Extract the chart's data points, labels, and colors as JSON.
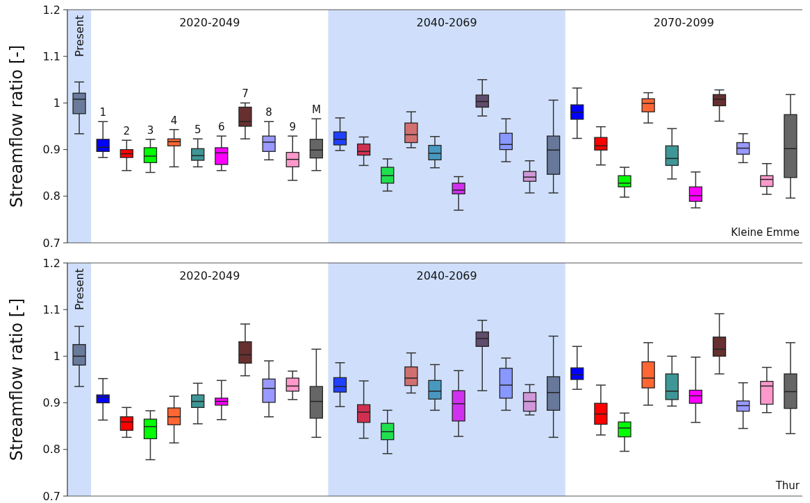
{
  "chart_data": [
    {
      "type": "box",
      "ylabel": "Streamflow ratio [-]",
      "ylim": [
        0.7,
        1.2
      ],
      "yticks": [
        0.7,
        0.8,
        0.9,
        1,
        1.1,
        1.2
      ],
      "categories": [
        "Present",
        "1",
        "2",
        "3",
        "4",
        "5",
        "6",
        "7",
        "8",
        "9",
        "M",
        null,
        null,
        null,
        null,
        null,
        null,
        null,
        null,
        null,
        null,
        null,
        null,
        null,
        null,
        null,
        null,
        null,
        null,
        null,
        null
      ],
      "colors": [
        "#6a7a9a",
        "#0000ff",
        "#ff0000",
        "#00ff00",
        "#ff6633",
        "#3f9696",
        "#ff00ff",
        "#663030",
        "#9999ff",
        "#ff99cc",
        "#666666",
        "#2040ff",
        "#d03050",
        "#20e050",
        "#d07070",
        "#4898c0",
        "#d030f0",
        "#604c6c",
        "#8898ff",
        "#d098d8",
        "#68789a",
        "#0000ff",
        "#ff0000",
        "#00ff00",
        "#ff6633",
        "#3f9696",
        "#ff00ff",
        "#663030",
        "#9999ff",
        "#ff99cc",
        "#666666"
      ],
      "boxes": [
        {
          "low": 0.934,
          "q1": 0.977,
          "median": 1.008,
          "q3": 1.021,
          "high": 1.045
        },
        {
          "low": 0.883,
          "q1": 0.896,
          "median": 0.905,
          "q3": 0.922,
          "high": 0.96
        },
        {
          "low": 0.855,
          "q1": 0.883,
          "median": 0.891,
          "q3": 0.9,
          "high": 0.92
        },
        {
          "low": 0.851,
          "q1": 0.872,
          "median": 0.886,
          "q3": 0.904,
          "high": 0.922
        },
        {
          "low": 0.863,
          "q1": 0.908,
          "median": 0.917,
          "q3": 0.923,
          "high": 0.943
        },
        {
          "low": 0.863,
          "q1": 0.877,
          "median": 0.887,
          "q3": 0.902,
          "high": 0.923
        },
        {
          "low": 0.855,
          "q1": 0.868,
          "median": 0.893,
          "q3": 0.904,
          "high": 0.929
        },
        {
          "low": 0.923,
          "q1": 0.95,
          "median": 0.96,
          "q3": 0.991,
          "high": 1.0
        },
        {
          "low": 0.878,
          "q1": 0.896,
          "median": 0.916,
          "q3": 0.929,
          "high": 0.96
        },
        {
          "low": 0.834,
          "q1": 0.863,
          "median": 0.879,
          "q3": 0.894,
          "high": 0.929
        },
        {
          "low": 0.855,
          "q1": 0.882,
          "median": 0.899,
          "q3": 0.922,
          "high": 0.966
        },
        {
          "low": 0.898,
          "q1": 0.91,
          "median": 0.922,
          "q3": 0.938,
          "high": 0.968
        },
        {
          "low": 0.866,
          "q1": 0.888,
          "median": 0.896,
          "q3": 0.912,
          "high": 0.927
        },
        {
          "low": 0.811,
          "q1": 0.828,
          "median": 0.844,
          "q3": 0.862,
          "high": 0.88
        },
        {
          "low": 0.904,
          "q1": 0.915,
          "median": 0.932,
          "q3": 0.957,
          "high": 0.981
        },
        {
          "low": 0.861,
          "q1": 0.878,
          "median": 0.892,
          "q3": 0.909,
          "high": 0.928
        },
        {
          "low": 0.77,
          "q1": 0.805,
          "median": 0.813,
          "q3": 0.828,
          "high": 0.842
        },
        {
          "low": 0.972,
          "q1": 0.991,
          "median": 1.003,
          "q3": 1.017,
          "high": 1.05
        },
        {
          "low": 0.874,
          "q1": 0.9,
          "median": 0.911,
          "q3": 0.935,
          "high": 0.966
        },
        {
          "low": 0.807,
          "q1": 0.832,
          "median": 0.841,
          "q3": 0.853,
          "high": 0.876
        },
        {
          "low": 0.807,
          "q1": 0.847,
          "median": 0.899,
          "q3": 0.929,
          "high": 1.006
        },
        {
          "low": 0.924,
          "q1": 0.965,
          "median": 0.98,
          "q3": 0.996,
          "high": 1.032
        },
        {
          "low": 0.867,
          "q1": 0.899,
          "median": 0.908,
          "q3": 0.926,
          "high": 0.949
        },
        {
          "low": 0.798,
          "q1": 0.82,
          "median": 0.828,
          "q3": 0.844,
          "high": 0.862
        },
        {
          "low": 0.957,
          "q1": 0.981,
          "median": 0.999,
          "q3": 1.009,
          "high": 1.022
        },
        {
          "low": 0.837,
          "q1": 0.866,
          "median": 0.881,
          "q3": 0.908,
          "high": 0.945
        },
        {
          "low": 0.775,
          "q1": 0.789,
          "median": 0.801,
          "q3": 0.82,
          "high": 0.852
        },
        {
          "low": 0.961,
          "q1": 0.994,
          "median": 1.008,
          "q3": 1.018,
          "high": 1.028
        },
        {
          "low": 0.872,
          "q1": 0.89,
          "median": 0.903,
          "q3": 0.915,
          "high": 0.934
        },
        {
          "low": 0.804,
          "q1": 0.821,
          "median": 0.836,
          "q3": 0.844,
          "high": 0.87
        },
        {
          "low": 0.796,
          "q1": 0.84,
          "median": 0.902,
          "q3": 0.975,
          "high": 1.018
        }
      ],
      "bands": [
        {
          "axis": "x",
          "from": "Present",
          "to": "Present",
          "color": "#cfdffb"
        }
      ],
      "annotations": [
        "2020-2049",
        "2040-2069",
        "2070-2099",
        "Kleine Emme"
      ]
    },
    {
      "type": "box",
      "ylabel": "Streamflow ratio [-]",
      "ylim": [
        0.7,
        1.2
      ],
      "yticks": [
        0.7,
        0.8,
        0.9,
        1,
        1.1,
        1.2
      ],
      "categories": [
        "Present",
        null,
        null,
        null,
        null,
        null,
        null,
        null,
        null,
        null,
        null,
        null,
        null,
        null,
        null,
        null,
        null,
        null,
        null,
        null,
        null,
        null,
        null,
        null,
        null,
        null,
        null,
        null,
        null,
        null,
        null
      ],
      "colors": [
        "#6a7a9a",
        "#0000ff",
        "#ff0000",
        "#00ff00",
        "#ff6633",
        "#3f9696",
        "#ff00ff",
        "#663030",
        "#9999ff",
        "#ff99cc",
        "#666666",
        "#2040ff",
        "#d03050",
        "#20e050",
        "#d07070",
        "#4898c0",
        "#d030f0",
        "#604c6c",
        "#8898ff",
        "#d098d8",
        "#68789a",
        "#0000ff",
        "#ff0000",
        "#00ff00",
        "#ff6633",
        "#3f9696",
        "#ff00ff",
        "#663030",
        "#9999ff",
        "#ff99cc",
        "#666666"
      ],
      "boxes": [
        {
          "low": 0.935,
          "q1": 0.981,
          "median": 1.0,
          "q3": 1.025,
          "high": 1.064
        },
        {
          "low": 0.863,
          "q1": 0.9,
          "median": 0.912,
          "q3": 0.917,
          "high": 0.952
        },
        {
          "low": 0.826,
          "q1": 0.841,
          "median": 0.859,
          "q3": 0.87,
          "high": 0.89
        },
        {
          "low": 0.778,
          "q1": 0.823,
          "median": 0.849,
          "q3": 0.865,
          "high": 0.883
        },
        {
          "low": 0.814,
          "q1": 0.853,
          "median": 0.87,
          "q3": 0.889,
          "high": 0.914
        },
        {
          "low": 0.855,
          "q1": 0.89,
          "median": 0.903,
          "q3": 0.917,
          "high": 0.942
        },
        {
          "low": 0.864,
          "q1": 0.895,
          "median": 0.903,
          "q3": 0.91,
          "high": 0.948
        },
        {
          "low": 0.958,
          "q1": 0.985,
          "median": 1.003,
          "q3": 1.031,
          "high": 1.069
        },
        {
          "low": 0.87,
          "q1": 0.901,
          "median": 0.931,
          "q3": 0.951,
          "high": 0.99
        },
        {
          "low": 0.907,
          "q1": 0.925,
          "median": 0.936,
          "q3": 0.953,
          "high": 0.968
        },
        {
          "low": 0.826,
          "q1": 0.867,
          "median": 0.903,
          "q3": 0.935,
          "high": 1.015
        },
        {
          "low": 0.892,
          "q1": 0.923,
          "median": 0.935,
          "q3": 0.954,
          "high": 0.986
        },
        {
          "low": 0.824,
          "q1": 0.858,
          "median": 0.88,
          "q3": 0.896,
          "high": 0.947
        },
        {
          "low": 0.791,
          "q1": 0.821,
          "median": 0.838,
          "q3": 0.856,
          "high": 0.884
        },
        {
          "low": 0.921,
          "q1": 0.937,
          "median": 0.953,
          "q3": 0.977,
          "high": 1.007
        },
        {
          "low": 0.884,
          "q1": 0.908,
          "median": 0.925,
          "q3": 0.948,
          "high": 0.982
        },
        {
          "low": 0.828,
          "q1": 0.861,
          "median": 0.898,
          "q3": 0.926,
          "high": 0.969
        },
        {
          "low": 0.926,
          "q1": 1.021,
          "median": 1.038,
          "q3": 1.052,
          "high": 1.077
        },
        {
          "low": 0.884,
          "q1": 0.91,
          "median": 0.938,
          "q3": 0.974,
          "high": 0.996
        },
        {
          "low": 0.874,
          "q1": 0.882,
          "median": 0.903,
          "q3": 0.922,
          "high": 0.939
        },
        {
          "low": 0.826,
          "q1": 0.884,
          "median": 0.922,
          "q3": 0.956,
          "high": 1.043
        },
        {
          "low": 0.929,
          "q1": 0.95,
          "median": 0.96,
          "q3": 0.975,
          "high": 1.021
        },
        {
          "low": 0.831,
          "q1": 0.854,
          "median": 0.876,
          "q3": 0.899,
          "high": 0.938
        },
        {
          "low": 0.796,
          "q1": 0.827,
          "median": 0.846,
          "q3": 0.859,
          "high": 0.878
        },
        {
          "low": 0.895,
          "q1": 0.932,
          "median": 0.953,
          "q3": 0.988,
          "high": 1.029
        },
        {
          "low": 0.893,
          "q1": 0.907,
          "median": 0.925,
          "q3": 0.962,
          "high": 1.0
        },
        {
          "low": 0.858,
          "q1": 0.899,
          "median": 0.915,
          "q3": 0.927,
          "high": 0.998
        },
        {
          "low": 0.962,
          "q1": 1.0,
          "median": 1.015,
          "q3": 1.041,
          "high": 1.091
        },
        {
          "low": 0.845,
          "q1": 0.882,
          "median": 0.894,
          "q3": 0.904,
          "high": 0.943
        },
        {
          "low": 0.879,
          "q1": 0.897,
          "median": 0.936,
          "q3": 0.946,
          "high": 0.976
        },
        {
          "low": 0.834,
          "q1": 0.888,
          "median": 0.924,
          "q3": 0.962,
          "high": 1.029
        }
      ],
      "bands": [
        {
          "axis": "x",
          "from": "Present",
          "to": "Present",
          "color": "#cfdffb"
        }
      ],
      "annotations": [
        "2020-2049",
        "2040-2069",
        "Thur"
      ]
    }
  ]
}
